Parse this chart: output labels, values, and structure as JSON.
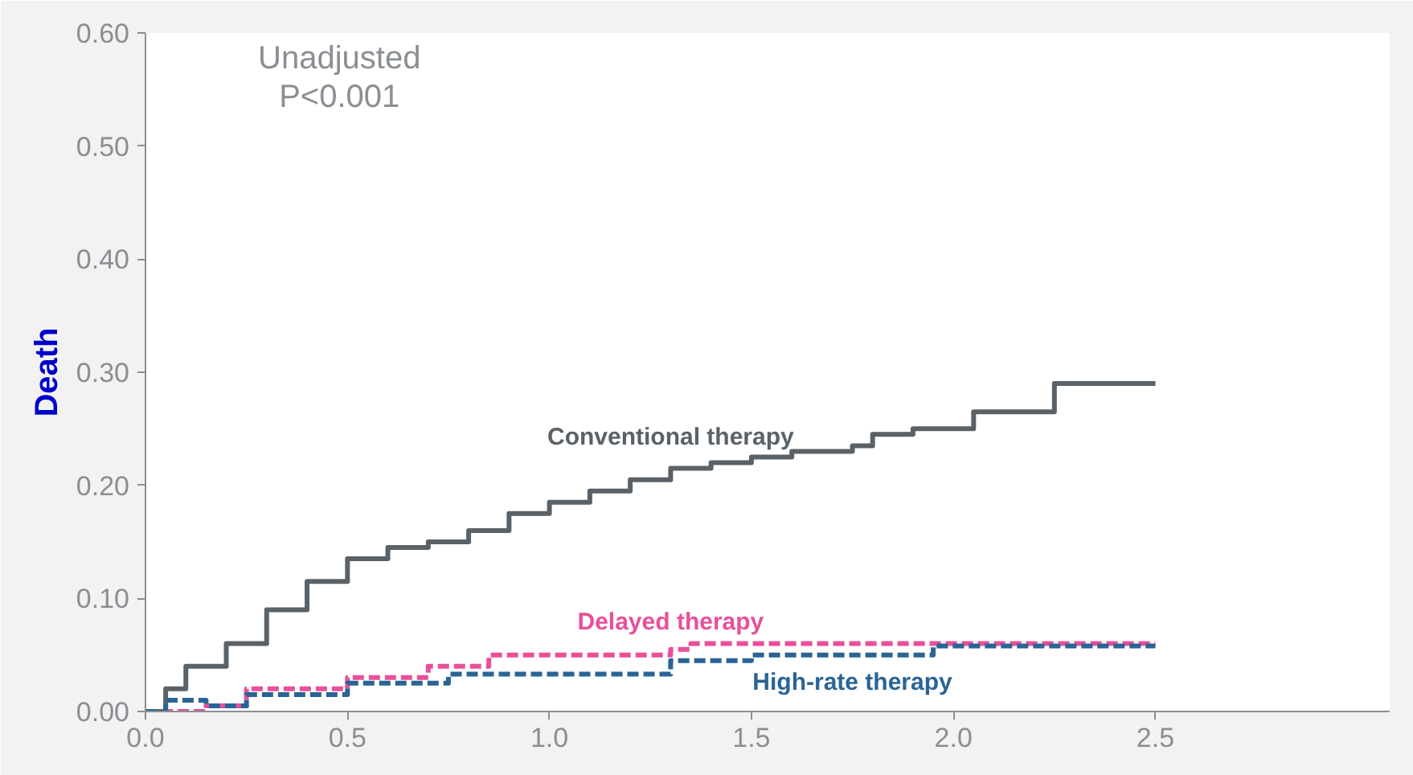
{
  "chart_data": {
    "type": "step",
    "ylabel": "Death",
    "annotations": [
      "Unadjusted\nP<0.001"
    ],
    "series": [
      {
        "name": "Conventional therapy",
        "color": "#5a6268",
        "line_style": "solid",
        "x": [
          0,
          0.05,
          0.1,
          0.2,
          0.3,
          0.4,
          0.5,
          0.6,
          0.7,
          0.8,
          0.9,
          1.0,
          1.1,
          1.2,
          1.3,
          1.4,
          1.5,
          1.6,
          1.75,
          1.8,
          1.9,
          2.05,
          2.25,
          2.5
        ],
        "values": [
          0,
          0.02,
          0.04,
          0.06,
          0.09,
          0.115,
          0.135,
          0.145,
          0.15,
          0.16,
          0.175,
          0.185,
          0.195,
          0.205,
          0.215,
          0.22,
          0.225,
          0.23,
          0.235,
          0.245,
          0.25,
          0.265,
          0.29,
          0.29
        ]
      },
      {
        "name": "Delayed therapy",
        "color": "#e8509a",
        "line_style": "dashed",
        "x": [
          0,
          0.15,
          0.25,
          0.5,
          0.7,
          0.85,
          1.3,
          1.35,
          2.5
        ],
        "values": [
          0,
          0.005,
          0.02,
          0.03,
          0.04,
          0.05,
          0.055,
          0.06,
          0.06
        ]
      },
      {
        "name": "High-rate therapy",
        "color": "#2a6496",
        "line_style": "dashed",
        "x": [
          0,
          0.05,
          0.15,
          0.25,
          0.5,
          0.75,
          1.3,
          1.5,
          1.95,
          2.5
        ],
        "values": [
          0,
          0.01,
          0.005,
          0.015,
          0.025,
          0.033,
          0.045,
          0.05,
          0.058,
          0.058
        ]
      }
    ],
    "xlim": [
      0,
      3.08
    ],
    "ylim": [
      0,
      0.6
    ],
    "xticks": [
      {
        "value": 0,
        "label": "0.0"
      },
      0.5,
      {
        "value": 1,
        "label": "1.0"
      },
      1.5,
      {
        "value": 2,
        "label": "2.0"
      },
      2.5
    ],
    "yticks": [
      {
        "value": 0,
        "label": "0.00"
      },
      {
        "value": 0.1,
        "label": "0.10"
      },
      {
        "value": 0.2,
        "label": "0.20"
      },
      {
        "value": 0.3,
        "label": "0.30"
      },
      {
        "value": 0.4,
        "label": "0.40"
      },
      {
        "value": 0.5,
        "label": "0.50"
      },
      {
        "value": 0.6,
        "label": "0.60"
      }
    ],
    "grid": false
  }
}
